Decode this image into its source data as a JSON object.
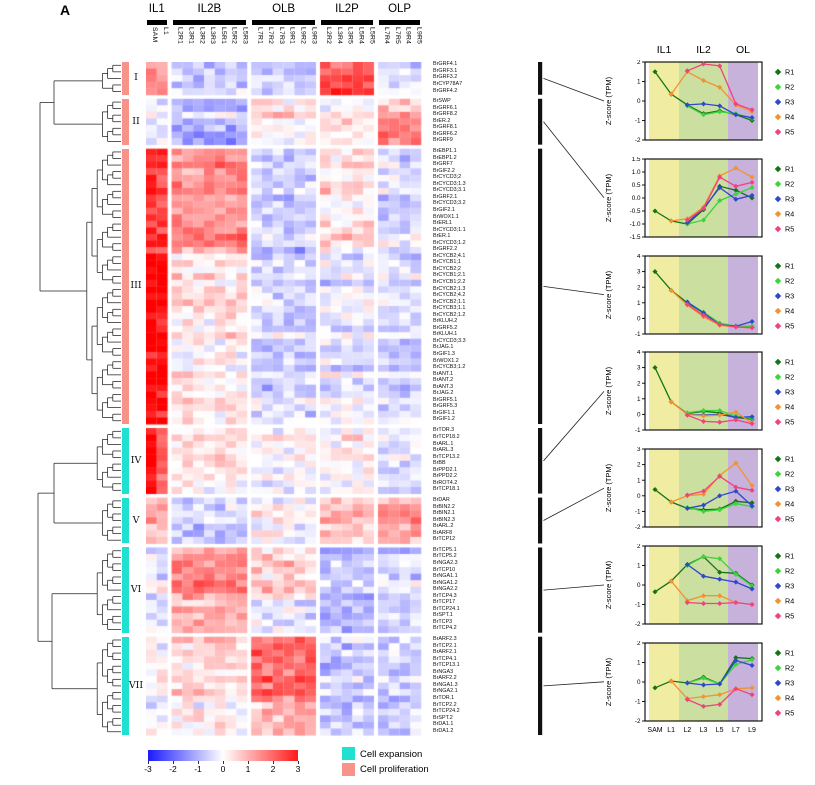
{
  "ui": {
    "panel_label": "A"
  },
  "chart_data": {
    "heatmap": {
      "type": "heatmap",
      "colorscale": {
        "min": -3,
        "max": 3,
        "colors": [
          "#1a1aff",
          "#ffffff",
          "#ff1a1a"
        ]
      },
      "profile_group_order": [
        "IL1",
        "IL2B",
        "OLB",
        "IL2P",
        "OLP"
      ],
      "col_groups": [
        {
          "label": "IL1",
          "cols": [
            "SAM",
            "L1"
          ]
        },
        {
          "label": "IL2B",
          "cols": [
            "L2R1",
            "L3R1",
            "L3R2",
            "L3R3",
            "L5R1",
            "L5R2",
            "L5R3"
          ]
        },
        {
          "label": "OLB",
          "cols": [
            "L7R1",
            "L7R2",
            "L7R3",
            "L9R1",
            "L9R2",
            "L9R3"
          ]
        },
        {
          "label": "IL2P",
          "cols": [
            "L2R2",
            "L3R4",
            "L3R5",
            "L5R4",
            "L5R5"
          ]
        },
        {
          "label": "OLP",
          "cols": [
            "L7R4",
            "L7R5",
            "L9R4",
            "L9R5"
          ]
        }
      ],
      "clusters": [
        {
          "numeral": "I",
          "category": "Cell proliferation",
          "sam_bias": 0,
          "genes": [
            "BrGRF4.1",
            "BrGRF3.1",
            "BrGRF3.2",
            "BrCYP78A7",
            "BrGRF4.2"
          ],
          "segments": [
            {
              "rows": [
                0,
                4
              ],
              "profile": [
                1.3,
                -0.7,
                -0.75,
                1.9,
                -0.35
              ]
            }
          ]
        },
        {
          "numeral": "II",
          "category": "Cell proliferation",
          "sam_bias": 0,
          "genes": [
            "BrSWP",
            "BrGRF6.1",
            "BrGRF8.2",
            "BrER.2",
            "BrGRF8.1",
            "BrGRF6.2",
            "BrGRF9"
          ],
          "segments": [
            {
              "rows": [
                0,
                2
              ],
              "profile": [
                -0.1,
                -0.6,
                0.5,
                0.1,
                0.7
              ]
            },
            {
              "rows": [
                3,
                6
              ],
              "profile": [
                -0.15,
                -1.0,
                0.1,
                0.35,
                1.6
              ]
            }
          ]
        },
        {
          "numeral": "III",
          "category": "Cell proliferation",
          "sam_bias": 0.3,
          "genes": [
            "BrEBP1.1",
            "BrEBP1.2",
            "BrGRF7",
            "BrGIF2.2",
            "BrCYCD3;2",
            "BrCYCD3;1.3",
            "BrCYCD3;3.1",
            "BrGRF2.1",
            "BrCYCD3;3.2",
            "BrGIF2.1",
            "BrWOX1.1",
            "BrERL1",
            "BrCYCD3;1.1",
            "BrER.1",
            "BrCYCD3;1.2",
            "BrGRF2.2",
            "BrCYCB2;4.1",
            "BrCYCB1;1",
            "BrCYCB2;2",
            "BrCYCB1;2.1",
            "BrCYCB1;2.2",
            "BrCYCB2;1.3",
            "BrCYCB2;4.2",
            "BrCYCB2;1.1",
            "BrCYCB3;1.1",
            "BrCYCB2;1.2",
            "BrKLUH.2",
            "BrGRF5.2",
            "BrKLUH.1",
            "BrCYCD3;3.3",
            "BrJAG.1",
            "BrGIF1.3",
            "BrWOX1.2",
            "BrCYCB3;1.2",
            "BrANT.1",
            "BrANT.2",
            "BrANT.3",
            "BrJAG.2",
            "BrGRF5.1",
            "BrGRF5.3",
            "BrGIF1.1",
            "BrGIF1.2"
          ],
          "segments": [
            {
              "rows": [
                0,
                15
              ],
              "profile": [
                2.2,
                1.35,
                -0.55,
                0.35,
                -0.4
              ]
            },
            {
              "rows": [
                16,
                41
              ],
              "profile": [
                2.8,
                0.3,
                -0.5,
                -0.25,
                -0.45
              ]
            }
          ]
        },
        {
          "numeral": "IV",
          "category": "Cell expansion",
          "sam_bias": 0.9,
          "genes": [
            "BrTOR.3",
            "BrTCP18.2",
            "BrARL.1",
            "BrARL.3",
            "BrTCP13.2",
            "BrBB",
            "BrPPD2.1",
            "BrPPD2.2",
            "BrROT4.2",
            "BrTCP18.1"
          ],
          "segments": [
            {
              "rows": [
                0,
                9
              ],
              "profile": [
                1.9,
                0.15,
                -0.15,
                0.05,
                -0.35
              ]
            }
          ]
        },
        {
          "numeral": "V",
          "category": "Cell expansion",
          "sam_bias": 0.3,
          "genes": [
            "BrDAR",
            "BrBIN2.2",
            "BrBIN2.1",
            "BrBIN2.3",
            "BrARL.2",
            "BrARF8",
            "BrTCP12"
          ],
          "segments": [
            {
              "rows": [
                0,
                6
              ],
              "profile": [
                0.55,
                -0.65,
                0.0,
                0.75,
                1.1
              ]
            }
          ]
        },
        {
          "numeral": "VI",
          "category": "Cell expansion",
          "sam_bias": 0,
          "genes": [
            "BrTCP5.1",
            "BrTCP5.2",
            "BrNGA2.3",
            "BrTCP10",
            "BrNGA1.1",
            "BrNGA1.2",
            "BrNGA2.2",
            "BrTCP4.3",
            "BrTCP17",
            "BrTCP24.1",
            "BrSPT.1",
            "BrTCP3",
            "BrTCP4.2"
          ],
          "segments": [
            {
              "rows": [
                0,
                7
              ],
              "profile": [
                -0.3,
                1.4,
                0.6,
                -0.75,
                -0.55
              ]
            },
            {
              "rows": [
                8,
                12
              ],
              "profile": [
                -0.1,
                1.05,
                -0.2,
                -0.7,
                -0.4
              ]
            }
          ]
        },
        {
          "numeral": "VII",
          "category": "Cell expansion",
          "sam_bias": 0,
          "genes": [
            "BrARF2.3",
            "BrTCP2.1",
            "BrARF2.1",
            "BrTCP4.1",
            "BrTCP13.1",
            "BrNGA3",
            "BrARF2.2",
            "BrNGA1.3",
            "BrNGA2.1",
            "BrTOR.1",
            "BrTCP2.2",
            "BrTCP24.2",
            "BrSPT.2",
            "BrDA1.1",
            "BrDA1.2"
          ],
          "segments": [
            {
              "rows": [
                0,
                9
              ],
              "profile": [
                -0.15,
                0.35,
                1.6,
                -0.75,
                -0.6
              ]
            },
            {
              "rows": [
                10,
                14
              ],
              "profile": [
                -0.1,
                0.2,
                0.9,
                -0.5,
                -0.45
              ]
            }
          ]
        }
      ],
      "colorbar": {
        "ticks": [
          -3,
          -2,
          -1,
          0,
          1,
          2,
          3
        ]
      },
      "legend": [
        {
          "label": "Cell expansion",
          "color": "#1fe0d1"
        },
        {
          "label": "Cell proliferation",
          "color": "#f8938b"
        }
      ]
    },
    "profile_plots": {
      "type": "line",
      "ylabel": "Z-score (TPM)",
      "x": [
        "SAM",
        "L1",
        "L2",
        "L3",
        "L5",
        "L7",
        "L9"
      ],
      "zone_labels": [
        "IL1",
        "IL2",
        "OL"
      ],
      "zone_colors": [
        "#f0eda2",
        "#cbe0a0",
        "#c6b2da"
      ],
      "series_names": [
        "R1",
        "R2",
        "R3",
        "R4",
        "R5"
      ],
      "series_colors": {
        "R1": "#147414",
        "R2": "#3bd43b",
        "R3": "#2c49cc",
        "R4": "#f49132",
        "R5": "#f2417f"
      },
      "plots": [
        {
          "cluster": "I",
          "ylim": [
            -2,
            2
          ],
          "ytick_step": 1,
          "series": {
            "R1": [
              1.5,
              0.35,
              -0.2,
              -0.65,
              -0.5,
              -0.7,
              -1.0
            ],
            "R2": [
              null,
              null,
              -0.25,
              -0.7,
              -0.55,
              -0.65,
              -0.9
            ],
            "R3": [
              null,
              null,
              -0.2,
              -0.15,
              -0.25,
              -0.7,
              -0.85
            ],
            "R4": [
              null,
              0.35,
              1.5,
              1.05,
              0.7,
              -0.2,
              -0.55
            ],
            "R5": [
              null,
              null,
              1.55,
              1.9,
              1.8,
              -0.15,
              -0.45
            ]
          }
        },
        {
          "cluster": "II",
          "ylim": [
            -1.5,
            1.5
          ],
          "ytick_step": 0.5,
          "series": {
            "R1": [
              -0.5,
              -0.88,
              -1.0,
              -0.45,
              0.45,
              0.3,
              0.0
            ],
            "R2": [
              null,
              null,
              -1.0,
              -0.85,
              -0.1,
              0.15,
              0.4
            ],
            "R3": [
              null,
              null,
              -0.95,
              -0.4,
              0.4,
              -0.05,
              0.1
            ],
            "R4": [
              null,
              -0.88,
              -0.8,
              -0.35,
              0.85,
              1.15,
              0.8
            ],
            "R5": [
              null,
              null,
              -0.85,
              -0.4,
              0.8,
              0.45,
              0.6
            ]
          }
        },
        {
          "cluster": "III",
          "ylim": [
            -1,
            4
          ],
          "ytick_step": 1,
          "series": {
            "R1": [
              3.0,
              1.8,
              1.0,
              0.35,
              -0.35,
              -0.5,
              -0.55
            ],
            "R2": [
              null,
              null,
              1.05,
              0.4,
              -0.3,
              -0.5,
              -0.5
            ],
            "R3": [
              null,
              null,
              1.05,
              0.35,
              -0.4,
              -0.5,
              -0.2
            ],
            "R4": [
              null,
              1.8,
              0.85,
              0.1,
              -0.45,
              -0.55,
              -0.6
            ],
            "R5": [
              null,
              null,
              0.9,
              0.2,
              -0.4,
              -0.55,
              -0.6
            ]
          }
        },
        {
          "cluster": "IV",
          "ylim": [
            -1,
            4
          ],
          "ytick_step": 1,
          "series": {
            "R1": [
              3.0,
              0.8,
              0.05,
              0.2,
              0.1,
              -0.2,
              -0.3
            ],
            "R2": [
              null,
              null,
              0.1,
              0.25,
              0.25,
              -0.1,
              -0.25
            ],
            "R3": [
              null,
              null,
              0.0,
              -0.05,
              0.0,
              -0.2,
              -0.15
            ],
            "R4": [
              null,
              0.8,
              0.0,
              -0.1,
              -0.05,
              0.15,
              -0.55
            ],
            "R5": [
              null,
              null,
              -0.05,
              -0.45,
              -0.5,
              -0.35,
              -0.6
            ]
          }
        },
        {
          "cluster": "V",
          "ylim": [
            -2,
            3
          ],
          "ytick_step": 1,
          "series": {
            "R1": [
              0.4,
              -0.4,
              -0.8,
              -0.9,
              -0.85,
              -0.35,
              -0.45
            ],
            "R2": [
              null,
              null,
              -0.75,
              -1.0,
              -0.9,
              -0.5,
              -0.7
            ],
            "R3": [
              null,
              null,
              -0.8,
              -0.6,
              0.0,
              0.3,
              -0.65
            ],
            "R4": [
              null,
              -0.4,
              0.0,
              0.1,
              1.3,
              2.1,
              0.65
            ],
            "R5": [
              null,
              null,
              0.05,
              0.3,
              1.25,
              0.55,
              0.35
            ]
          }
        },
        {
          "cluster": "VI",
          "ylim": [
            -2,
            2
          ],
          "ytick_step": 1,
          "series": {
            "R1": [
              -0.35,
              0.2,
              1.05,
              1.45,
              0.65,
              0.6,
              0.0
            ],
            "R2": [
              null,
              null,
              1.0,
              1.45,
              1.35,
              0.55,
              -0.05
            ],
            "R3": [
              null,
              null,
              1.05,
              0.45,
              0.3,
              0.15,
              -0.2
            ],
            "R4": [
              null,
              0.2,
              -0.8,
              -0.55,
              -0.55,
              -0.9,
              -1.0
            ],
            "R5": [
              null,
              null,
              -0.9,
              -0.95,
              -0.95,
              -0.9,
              -1.0
            ]
          }
        },
        {
          "cluster": "VII",
          "ylim": [
            -2,
            2
          ],
          "ytick_step": 1,
          "series": {
            "R1": [
              -0.3,
              0.05,
              -0.05,
              0.25,
              -0.1,
              1.25,
              1.2
            ],
            "R2": [
              null,
              null,
              -0.05,
              0.2,
              -0.1,
              0.9,
              1.15
            ],
            "R3": [
              null,
              null,
              -0.05,
              -0.15,
              -0.1,
              1.1,
              0.85
            ],
            "R4": [
              null,
              0.05,
              -0.85,
              -0.75,
              -0.65,
              -0.35,
              -0.3
            ],
            "R5": [
              null,
              null,
              -0.9,
              -1.25,
              -1.15,
              -0.35,
              -0.65
            ]
          }
        }
      ]
    }
  }
}
